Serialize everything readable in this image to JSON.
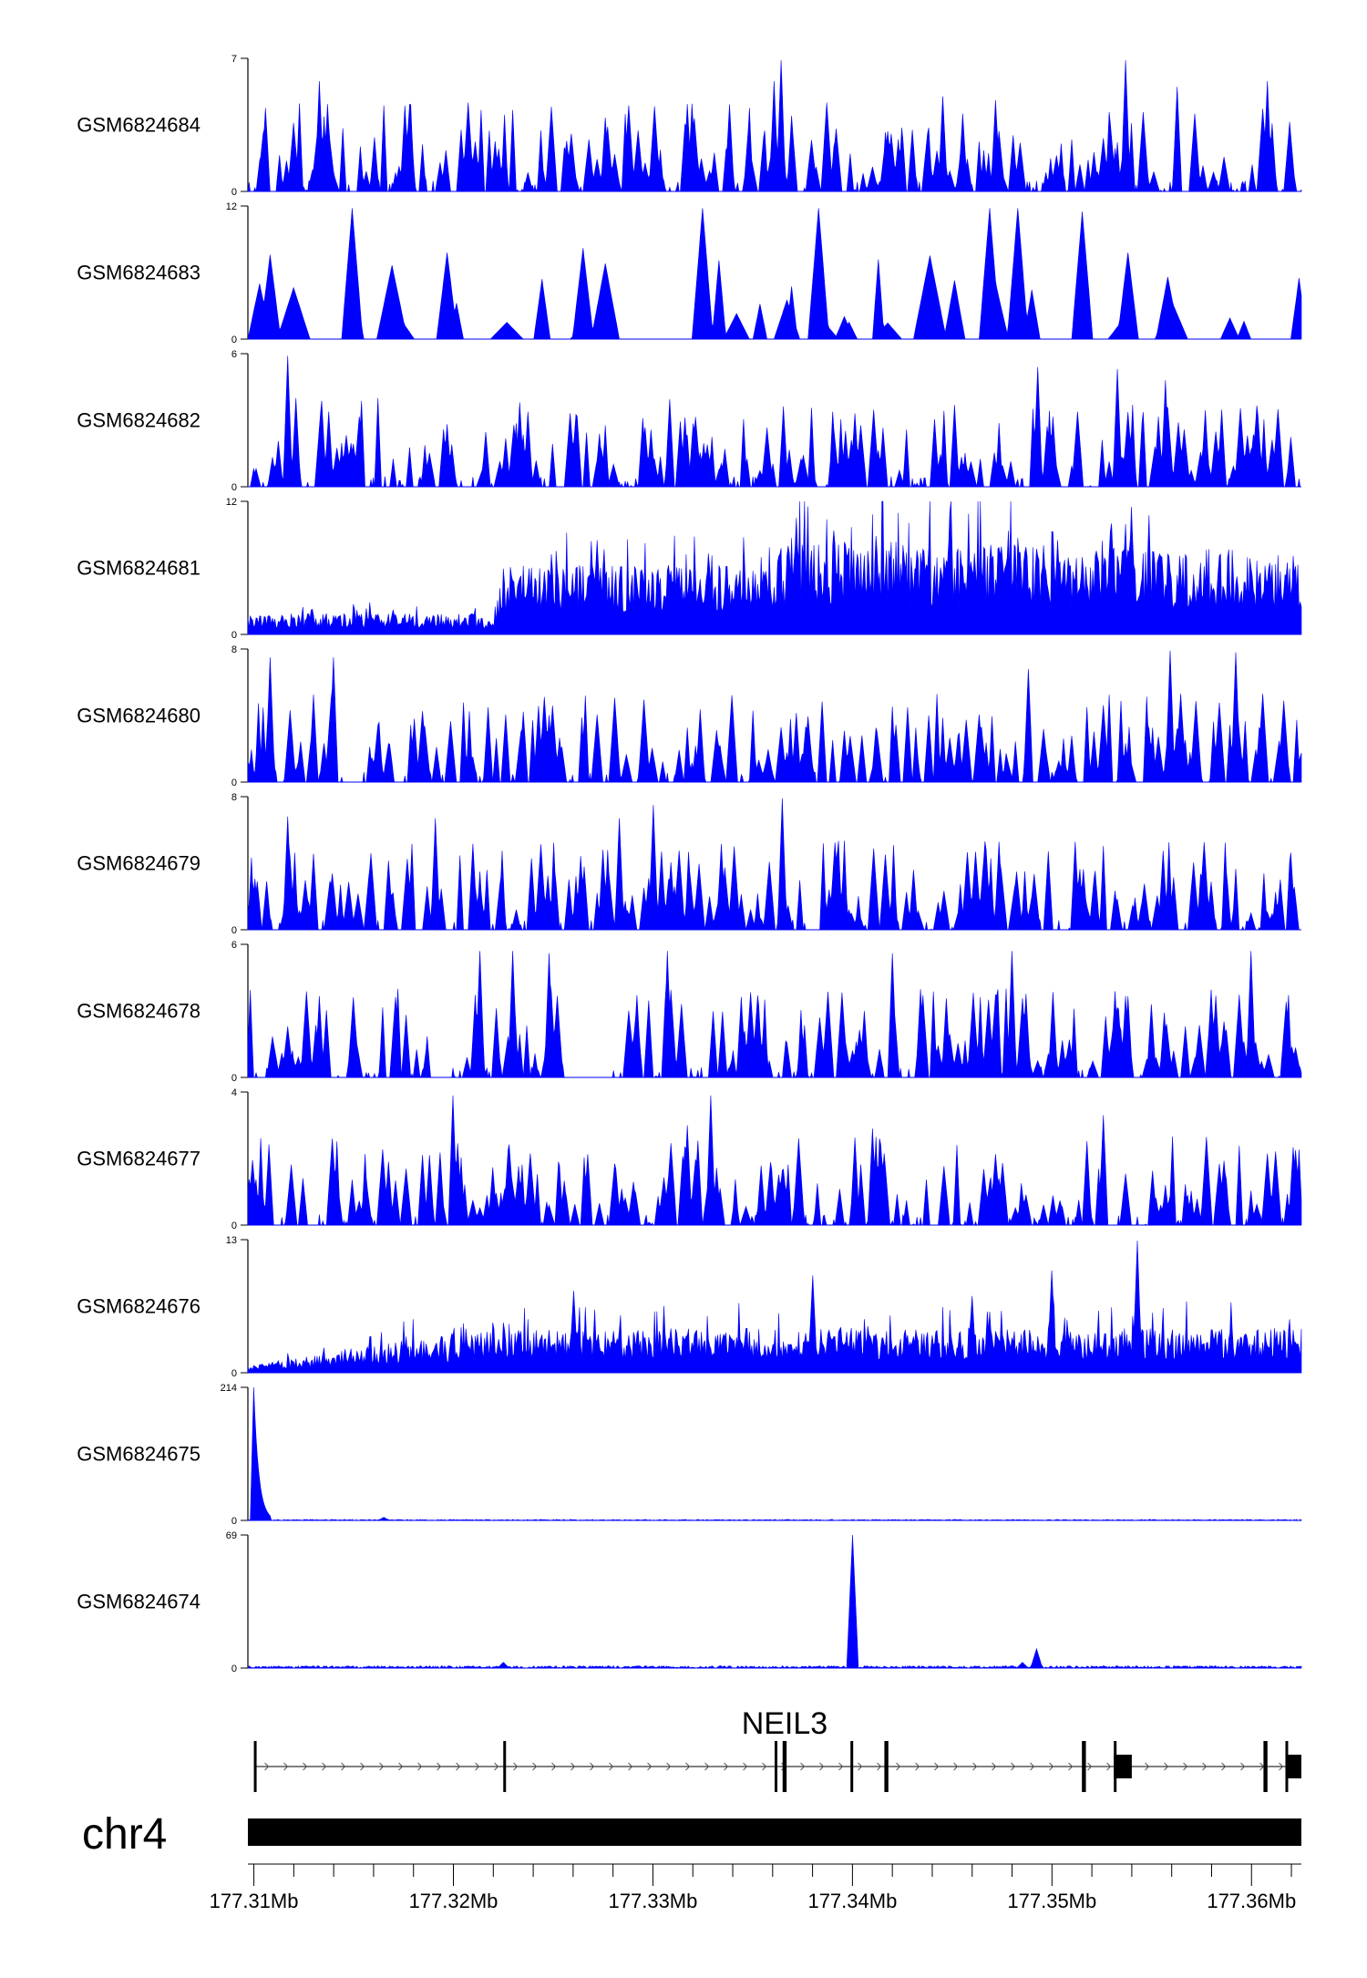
{
  "colors": {
    "signal": "#0000ff",
    "axis": "#000000",
    "gene": "#000000",
    "background": "#ffffff"
  },
  "chart_data": {
    "type": "area",
    "x_unit": "Mb",
    "xlim": [
      177.3097,
      177.3625
    ],
    "gene": {
      "name": "NEIL3",
      "strand": "+",
      "exons": [
        [
          177.31,
          177.3101
        ],
        [
          177.3225,
          177.3226
        ],
        [
          177.3361,
          177.3362
        ],
        [
          177.3365,
          177.3367
        ],
        [
          177.3399,
          177.34
        ],
        [
          177.3416,
          177.3418
        ],
        [
          177.3515,
          177.3517
        ],
        [
          177.3531,
          177.354
        ],
        [
          177.3606,
          177.3608
        ],
        [
          177.3617,
          177.3625
        ]
      ]
    },
    "chrom": {
      "name": "chr4"
    },
    "x_ticks": [
      177.31,
      177.32,
      177.33,
      177.34,
      177.35,
      177.36
    ],
    "x_tick_labels": [
      "177.31Mb",
      "177.32Mb",
      "177.33Mb",
      "177.34Mb",
      "177.35Mb",
      "177.36Mb"
    ],
    "tracks": [
      {
        "name": "GSM6824684",
        "ymax": 7,
        "ymax_label": "7",
        "mode": "spiky",
        "peaks": [
          [
            177.3364,
            6.9
          ],
          [
            177.3537,
            6.9
          ],
          [
            177.3133,
            5.8
          ],
          [
            177.3361,
            5.8
          ],
          [
            177.3608,
            5.8
          ],
          [
            177.3563,
            5.5
          ],
          [
            177.3445,
            5.0
          ],
          [
            177.3472,
            4.8
          ]
        ]
      },
      {
        "name": "GSM6824683",
        "ymax": 12,
        "ymax_label": "12",
        "mode": "sparse",
        "peaks": [
          [
            177.3149,
            11.8
          ],
          [
            177.3325,
            11.8
          ],
          [
            177.3383,
            11.8
          ],
          [
            177.3469,
            11.8
          ],
          [
            177.3483,
            11.8
          ],
          [
            177.3515,
            11.5
          ],
          [
            177.3538,
            7.8
          ],
          [
            177.3108,
            7.6
          ],
          [
            177.3197,
            7.8
          ],
          [
            177.3265,
            8.2
          ]
        ]
      },
      {
        "name": "GSM6824682",
        "ymax": 6,
        "ymax_label": "6",
        "mode": "spiky",
        "peaks": [
          [
            177.3117,
            5.9
          ],
          [
            177.3233,
            3.8
          ],
          [
            177.3493,
            5.4
          ],
          [
            177.3533,
            5.3
          ],
          [
            177.3557,
            4.8
          ]
        ]
      },
      {
        "name": "GSM6824681",
        "ymax": 12,
        "ymax_label": "12",
        "mode": "dense",
        "level": [
          [
            177.3097,
            1.5
          ],
          [
            177.322,
            1.5
          ],
          [
            177.3225,
            5.0
          ],
          [
            177.335,
            5.0
          ],
          [
            177.336,
            7.0
          ],
          [
            177.3625,
            6.0
          ]
        ],
        "peaks": [
          [
            177.3272,
            8.5
          ],
          [
            177.3372,
            10.5
          ],
          [
            177.3449,
            11.0
          ],
          [
            177.354,
            11.5
          ],
          [
            177.3503,
            8.5
          ],
          [
            177.353,
            10.0
          ]
        ]
      },
      {
        "name": "GSM6824680",
        "ymax": 8,
        "ymax_label": "8",
        "mode": "spiky",
        "peaks": [
          [
            177.3108,
            7.5
          ],
          [
            177.314,
            7.5
          ],
          [
            177.3559,
            7.9
          ],
          [
            177.3592,
            7.8
          ],
          [
            177.3488,
            6.8
          ]
        ]
      },
      {
        "name": "GSM6824679",
        "ymax": 8,
        "ymax_label": "8",
        "mode": "spiky",
        "peaks": [
          [
            177.3117,
            6.8
          ],
          [
            177.3191,
            6.7
          ],
          [
            177.3283,
            6.7
          ],
          [
            177.3365,
            7.9
          ],
          [
            177.33,
            7.5
          ]
        ]
      },
      {
        "name": "GSM6824678",
        "ymax": 6,
        "ymax_label": "6",
        "mode": "spiky",
        "gap": [
          177.3255,
          177.328
        ],
        "peaks": [
          [
            177.3213,
            5.7
          ],
          [
            177.323,
            5.7
          ],
          [
            177.3248,
            5.6
          ],
          [
            177.3307,
            5.7
          ],
          [
            177.342,
            5.6
          ],
          [
            177.348,
            5.7
          ],
          [
            177.36,
            5.7
          ]
        ]
      },
      {
        "name": "GSM6824677",
        "ymax": 4,
        "ymax_label": "4",
        "mode": "spiky",
        "peaks": [
          [
            177.32,
            3.9
          ],
          [
            177.3329,
            3.9
          ],
          [
            177.3317,
            3.0
          ],
          [
            177.3526,
            3.3
          ],
          [
            177.341,
            2.9
          ]
        ]
      },
      {
        "name": "GSM6824676",
        "ymax": 13,
        "ymax_label": "13",
        "mode": "dense",
        "level": [
          [
            177.3097,
            0.5
          ],
          [
            177.315,
            2.0
          ],
          [
            177.322,
            3.5
          ],
          [
            177.3625,
            3.5
          ]
        ],
        "peaks": [
          [
            177.3543,
            12.9
          ],
          [
            177.338,
            9.5
          ],
          [
            177.35,
            10.0
          ],
          [
            177.326,
            8.0
          ],
          [
            177.346,
            7.5
          ]
        ]
      },
      {
        "name": "GSM6824675",
        "ymax": 214,
        "ymax_label": "214",
        "mode": "flat",
        "level": [
          [
            177.3097,
            2
          ],
          [
            177.3625,
            2
          ]
        ],
        "peaks": [
          [
            177.31,
            214
          ],
          [
            177.3165,
            5
          ]
        ]
      },
      {
        "name": "GSM6824674",
        "ymax": 69,
        "ymax_label": "69",
        "mode": "flat",
        "level": [
          [
            177.3097,
            1.5
          ],
          [
            177.3625,
            1.5
          ]
        ],
        "peaks": [
          [
            177.34,
            69
          ],
          [
            177.3492,
            10
          ],
          [
            177.3485,
            3
          ],
          [
            177.3225,
            3
          ]
        ]
      }
    ]
  }
}
